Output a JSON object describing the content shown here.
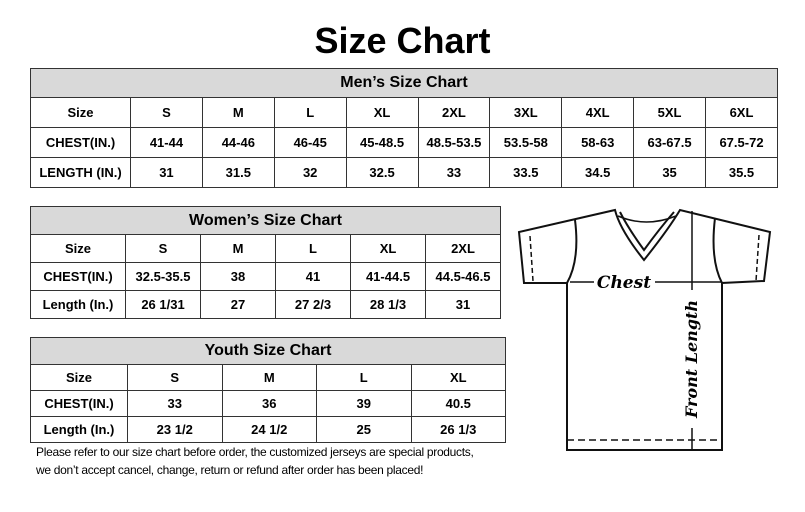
{
  "title": "Size Chart",
  "men": {
    "title": "Men’s Size Chart",
    "sizes_label": "Size",
    "sizes": [
      "S",
      "M",
      "L",
      "XL",
      "2XL",
      "3XL",
      "4XL",
      "5XL",
      "6XL"
    ],
    "rows": [
      {
        "label": "CHEST(IN.)",
        "values": [
          "41-44",
          "44-46",
          "46-45",
          "45-48.5",
          "48.5-53.5",
          "53.5-58",
          "58-63",
          "63-67.5",
          "67.5-72"
        ]
      },
      {
        "label": "LENGTH (IN.)",
        "values": [
          "31",
          "31.5",
          "32",
          "32.5",
          "33",
          "33.5",
          "34.5",
          "35",
          "35.5"
        ]
      }
    ]
  },
  "women": {
    "title": "Women’s Size Chart",
    "sizes_label": "Size",
    "sizes": [
      "S",
      "M",
      "L",
      "XL",
      "2XL"
    ],
    "rows": [
      {
        "label": "CHEST(IN.)",
        "values": [
          "32.5-35.5",
          "38",
          "41",
          "41-44.5",
          "44.5-46.5"
        ]
      },
      {
        "label": "Length (In.)",
        "values": [
          "26 1/31",
          "27",
          "27 2/3",
          "28 1/3",
          "31"
        ]
      }
    ]
  },
  "youth": {
    "title": "Youth Size Chart",
    "sizes_label": "Size",
    "sizes": [
      "S",
      "M",
      "L",
      "XL"
    ],
    "rows": [
      {
        "label": "CHEST(IN.)",
        "values": [
          "33",
          "36",
          "39",
          "40.5"
        ]
      },
      {
        "label": "Length (In.)",
        "values": [
          "23 1/2",
          "24 1/2",
          "25",
          "26 1/3"
        ]
      }
    ]
  },
  "note": {
    "line1": "Please refer to our size chart before order, the customized jerseys are special products,",
    "line2": "we don’t accept cancel, change, return or refund after order has been placed!"
  },
  "diagram": {
    "chest_label": "Chest",
    "length_label": "Front Length"
  },
  "colors": {
    "header_bg": "#d9d9d9",
    "border": "#333333"
  }
}
